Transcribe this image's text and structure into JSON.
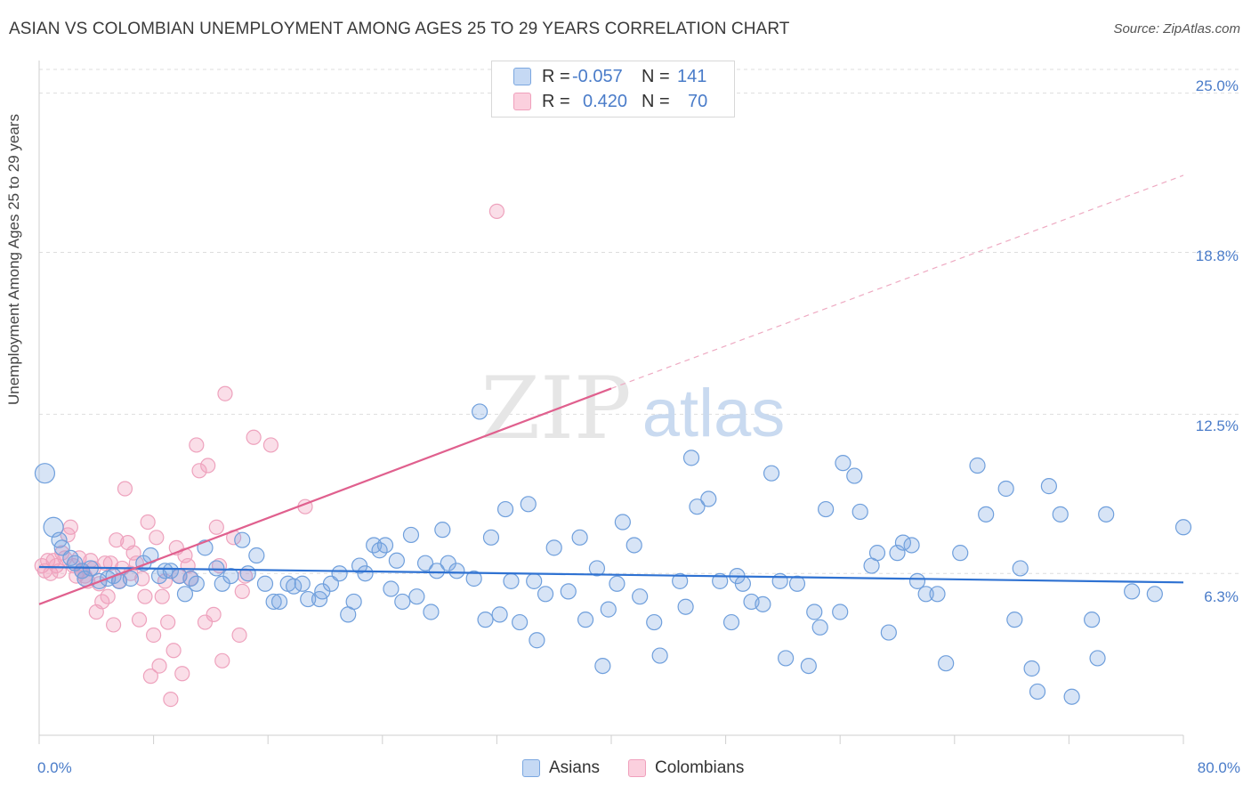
{
  "header": {
    "title": "ASIAN VS COLOMBIAN UNEMPLOYMENT AMONG AGES 25 TO 29 YEARS CORRELATION CHART",
    "source": "Source: ZipAtlas.com"
  },
  "watermark": {
    "zip": "ZIP",
    "atlas": "atlas"
  },
  "legend": {
    "rows": [
      {
        "r_label": "R =",
        "r_value": "-0.057",
        "n_label": "N =",
        "n_value": "141",
        "color": "#7ba7e0"
      },
      {
        "r_label": "R =",
        "r_value": "0.420",
        "n_label": "N =",
        "n_value": "70",
        "color": "#f0a0bc"
      }
    ]
  },
  "bottom_legend": {
    "asians": "Asians",
    "colombians": "Colombians"
  },
  "axes": {
    "ylabel": "Unemployment Among Ages 25 to 29 years",
    "y_ticks": [
      "25.0%",
      "18.8%",
      "12.5%",
      "6.3%"
    ],
    "x_ticks": [
      "0.0%",
      "80.0%"
    ]
  },
  "chart_data": {
    "type": "scatter",
    "xlabel": "",
    "ylabel": "Unemployment Among Ages 25 to 29 years",
    "xlim": [
      0,
      80
    ],
    "ylim": [
      0,
      26.2
    ],
    "y_gridlines": [
      25.0,
      18.8,
      12.5,
      6.3
    ],
    "series": [
      {
        "name": "Asians",
        "color": "#7ba7e0",
        "trend": {
          "x": [
            0,
            80
          ],
          "y": [
            6.55,
            5.95
          ],
          "style": "solid",
          "color": "#2f72d2"
        },
        "points": [
          [
            0.4,
            10.2
          ],
          [
            1.0,
            8.1
          ],
          [
            1.4,
            7.6
          ],
          [
            1.6,
            7.3
          ],
          [
            2.2,
            6.9
          ],
          [
            2.5,
            6.7
          ],
          [
            3.0,
            6.4
          ],
          [
            3.2,
            6.1
          ],
          [
            3.6,
            6.5
          ],
          [
            4.2,
            6.0
          ],
          [
            4.8,
            6.1
          ],
          [
            5.2,
            6.2
          ],
          [
            5.6,
            6.0
          ],
          [
            6.4,
            6.1
          ],
          [
            7.3,
            6.7
          ],
          [
            7.8,
            7.0
          ],
          [
            8.4,
            6.2
          ],
          [
            8.8,
            6.4
          ],
          [
            9.2,
            6.4
          ],
          [
            9.8,
            6.2
          ],
          [
            10.2,
            5.5
          ],
          [
            10.6,
            6.1
          ],
          [
            11.0,
            5.9
          ],
          [
            11.6,
            7.3
          ],
          [
            12.4,
            6.5
          ],
          [
            12.8,
            5.9
          ],
          [
            13.4,
            6.2
          ],
          [
            14.2,
            7.6
          ],
          [
            14.6,
            6.3
          ],
          [
            15.2,
            7.0
          ],
          [
            15.8,
            5.9
          ],
          [
            16.4,
            5.2
          ],
          [
            16.8,
            5.2
          ],
          [
            17.4,
            5.9
          ],
          [
            17.8,
            5.8
          ],
          [
            18.4,
            5.9
          ],
          [
            18.8,
            5.3
          ],
          [
            19.6,
            5.3
          ],
          [
            19.8,
            5.6
          ],
          [
            20.4,
            5.9
          ],
          [
            21.0,
            6.3
          ],
          [
            21.6,
            4.7
          ],
          [
            22.0,
            5.2
          ],
          [
            22.4,
            6.6
          ],
          [
            22.8,
            6.3
          ],
          [
            23.4,
            7.4
          ],
          [
            23.8,
            7.2
          ],
          [
            24.2,
            7.4
          ],
          [
            24.6,
            5.7
          ],
          [
            25.0,
            6.8
          ],
          [
            25.4,
            5.2
          ],
          [
            26.0,
            7.8
          ],
          [
            26.4,
            5.4
          ],
          [
            27.0,
            6.7
          ],
          [
            27.4,
            4.8
          ],
          [
            27.8,
            6.4
          ],
          [
            28.2,
            8.0
          ],
          [
            28.6,
            6.7
          ],
          [
            29.2,
            6.4
          ],
          [
            30.4,
            6.1
          ],
          [
            30.8,
            12.6
          ],
          [
            31.2,
            4.5
          ],
          [
            31.6,
            7.7
          ],
          [
            32.2,
            4.7
          ],
          [
            32.6,
            8.8
          ],
          [
            33.0,
            6.0
          ],
          [
            33.6,
            4.4
          ],
          [
            34.2,
            9.0
          ],
          [
            34.6,
            6.0
          ],
          [
            34.8,
            3.7
          ],
          [
            35.4,
            5.5
          ],
          [
            36.0,
            7.3
          ],
          [
            37.0,
            5.6
          ],
          [
            37.8,
            7.7
          ],
          [
            38.2,
            4.5
          ],
          [
            39.0,
            6.5
          ],
          [
            39.4,
            2.7
          ],
          [
            39.8,
            4.9
          ],
          [
            40.4,
            5.9
          ],
          [
            40.8,
            8.3
          ],
          [
            41.6,
            7.4
          ],
          [
            42.0,
            5.4
          ],
          [
            43.0,
            4.4
          ],
          [
            43.4,
            3.1
          ],
          [
            44.8,
            6.0
          ],
          [
            45.2,
            5.0
          ],
          [
            45.6,
            10.8
          ],
          [
            46.0,
            8.9
          ],
          [
            46.8,
            9.2
          ],
          [
            47.6,
            6.0
          ],
          [
            48.4,
            4.4
          ],
          [
            48.8,
            6.2
          ],
          [
            49.2,
            5.9
          ],
          [
            49.8,
            5.2
          ],
          [
            50.6,
            5.1
          ],
          [
            51.2,
            10.2
          ],
          [
            51.8,
            6.0
          ],
          [
            52.2,
            3.0
          ],
          [
            53.0,
            5.9
          ],
          [
            53.8,
            2.7
          ],
          [
            54.2,
            4.8
          ],
          [
            54.6,
            4.2
          ],
          [
            55.0,
            8.8
          ],
          [
            56.0,
            4.8
          ],
          [
            56.2,
            10.6
          ],
          [
            57.0,
            10.1
          ],
          [
            57.4,
            8.7
          ],
          [
            58.2,
            6.6
          ],
          [
            58.6,
            7.1
          ],
          [
            59.4,
            4.0
          ],
          [
            60.0,
            7.1
          ],
          [
            60.4,
            7.5
          ],
          [
            61.0,
            7.4
          ],
          [
            61.4,
            6.0
          ],
          [
            62.0,
            5.5
          ],
          [
            62.8,
            5.5
          ],
          [
            63.4,
            2.8
          ],
          [
            64.4,
            7.1
          ],
          [
            65.6,
            10.5
          ],
          [
            66.2,
            8.6
          ],
          [
            67.6,
            9.6
          ],
          [
            68.2,
            4.5
          ],
          [
            68.6,
            6.5
          ],
          [
            69.4,
            2.6
          ],
          [
            69.8,
            1.7
          ],
          [
            70.6,
            9.7
          ],
          [
            71.4,
            8.6
          ],
          [
            72.2,
            1.5
          ],
          [
            73.6,
            4.5
          ],
          [
            74.0,
            3.0
          ],
          [
            74.6,
            8.6
          ],
          [
            76.4,
            5.6
          ],
          [
            78.0,
            5.5
          ],
          [
            80.0,
            8.1
          ]
        ]
      },
      {
        "name": "Colombians",
        "color": "#f0a0bc",
        "trend": {
          "x": [
            0,
            40
          ],
          "y": [
            5.1,
            13.5
          ],
          "x_dashed_to": 80,
          "y_dashed_to": 21.8,
          "style": "solid+dashed",
          "color": "#e0608e"
        },
        "points": [
          [
            0.2,
            6.6
          ],
          [
            0.4,
            6.4
          ],
          [
            0.6,
            6.8
          ],
          [
            0.8,
            6.3
          ],
          [
            1.0,
            6.8
          ],
          [
            1.2,
            6.6
          ],
          [
            1.4,
            6.4
          ],
          [
            1.6,
            7.1
          ],
          [
            1.8,
            6.9
          ],
          [
            2.0,
            7.8
          ],
          [
            2.2,
            8.1
          ],
          [
            2.4,
            6.6
          ],
          [
            2.6,
            6.2
          ],
          [
            2.8,
            6.9
          ],
          [
            3.0,
            6.4
          ],
          [
            3.2,
            6.2
          ],
          [
            3.4,
            6.0
          ],
          [
            3.6,
            6.8
          ],
          [
            3.8,
            6.5
          ],
          [
            4.0,
            4.8
          ],
          [
            4.2,
            5.9
          ],
          [
            4.4,
            5.2
          ],
          [
            4.6,
            6.7
          ],
          [
            4.8,
            5.4
          ],
          [
            5.0,
            6.7
          ],
          [
            5.2,
            4.3
          ],
          [
            5.4,
            7.6
          ],
          [
            5.6,
            6.0
          ],
          [
            5.8,
            6.5
          ],
          [
            6.0,
            9.6
          ],
          [
            6.2,
            7.5
          ],
          [
            6.4,
            6.3
          ],
          [
            6.6,
            7.1
          ],
          [
            6.8,
            6.7
          ],
          [
            7.0,
            4.5
          ],
          [
            7.2,
            6.1
          ],
          [
            7.4,
            5.4
          ],
          [
            7.6,
            8.3
          ],
          [
            7.8,
            2.3
          ],
          [
            8.0,
            3.9
          ],
          [
            8.2,
            7.7
          ],
          [
            8.4,
            2.7
          ],
          [
            8.6,
            5.4
          ],
          [
            8.8,
            6.0
          ],
          [
            9.0,
            4.4
          ],
          [
            9.2,
            1.4
          ],
          [
            9.4,
            3.3
          ],
          [
            9.6,
            7.3
          ],
          [
            9.8,
            6.2
          ],
          [
            10.0,
            2.4
          ],
          [
            10.2,
            7.0
          ],
          [
            10.4,
            6.6
          ],
          [
            10.6,
            6.1
          ],
          [
            11.0,
            11.3
          ],
          [
            11.2,
            10.3
          ],
          [
            11.6,
            4.4
          ],
          [
            11.8,
            10.5
          ],
          [
            12.2,
            4.7
          ],
          [
            12.4,
            8.1
          ],
          [
            12.6,
            6.6
          ],
          [
            12.8,
            2.9
          ],
          [
            13.0,
            13.3
          ],
          [
            13.6,
            7.7
          ],
          [
            14.0,
            3.9
          ],
          [
            14.2,
            5.6
          ],
          [
            14.4,
            6.2
          ],
          [
            15.0,
            11.6
          ],
          [
            16.2,
            11.3
          ],
          [
            18.6,
            8.9
          ],
          [
            32.0,
            20.4
          ]
        ]
      }
    ]
  }
}
